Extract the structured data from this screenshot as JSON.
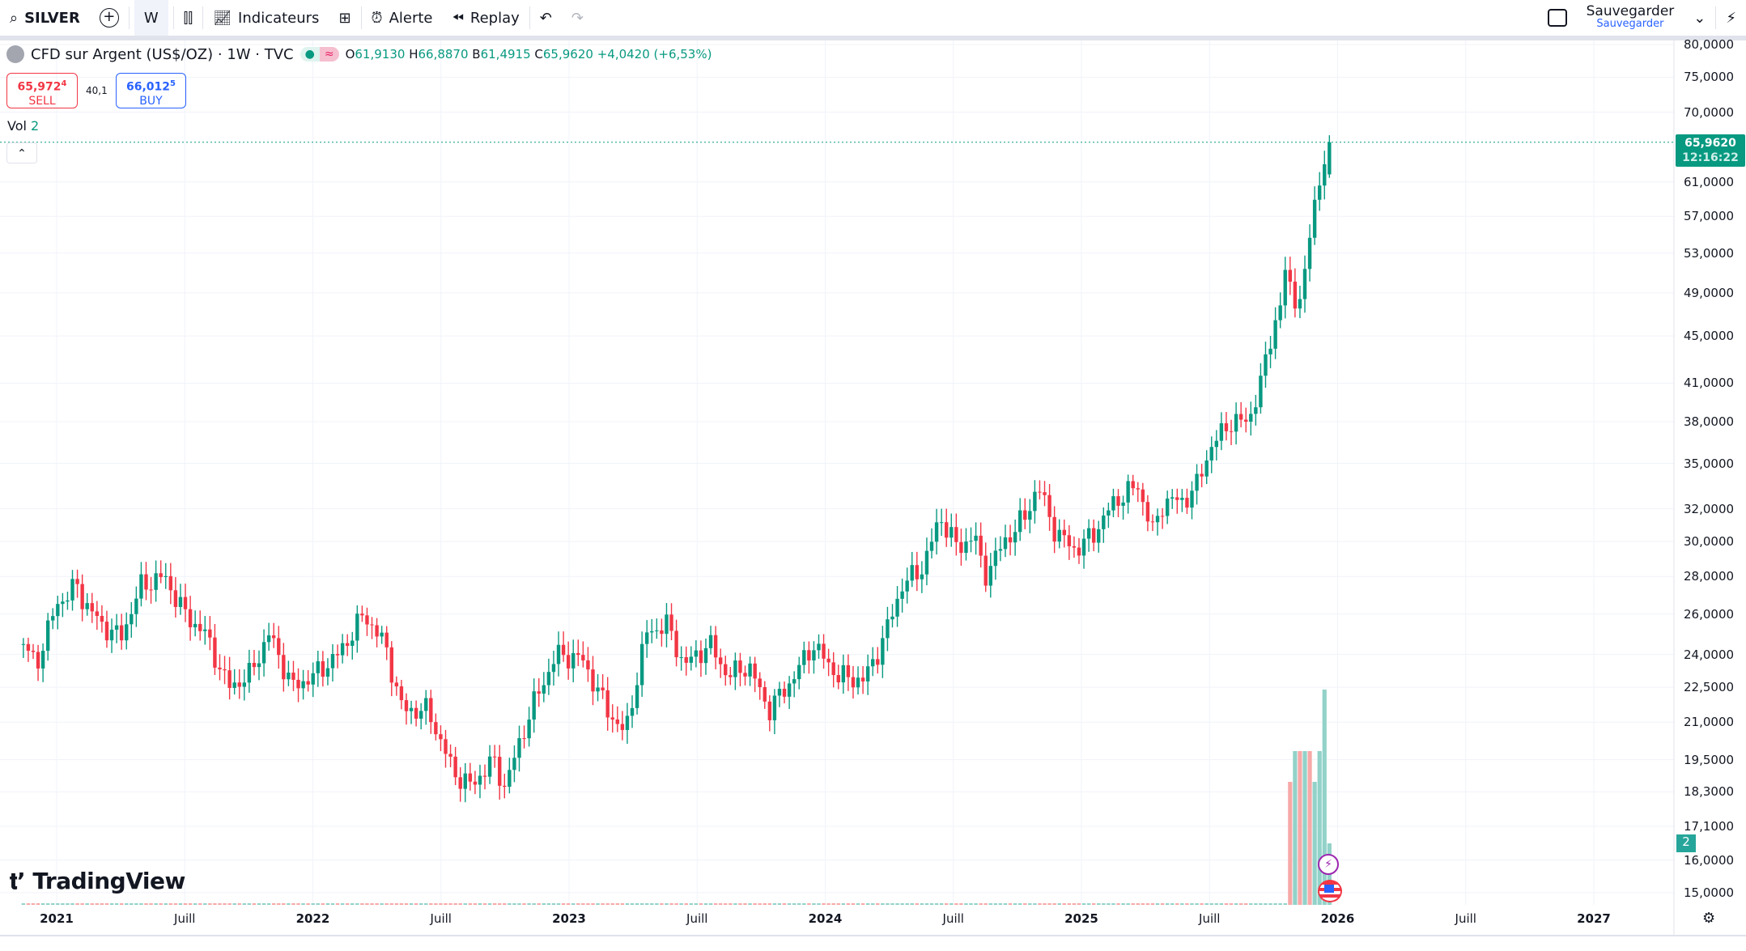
{
  "toolbar": {
    "symbol": "SILVER",
    "interval": "W",
    "indicators": "Indicateurs",
    "alert": "Alerte",
    "replay": "Replay",
    "save": "Sauvegarder",
    "save_sub": "Sauvegarder"
  },
  "legend": {
    "title": "CFD sur Argent (US$/OZ) · 1W · TVC",
    "o_label": "O",
    "o": "61,9130",
    "h_label": "H",
    "h": "66,8870",
    "l_label": "B",
    "l": "61,4915",
    "c_label": "C",
    "c": "65,9620",
    "change": "+4,0420 (+6,53%)"
  },
  "trade": {
    "sell_price": "65,972",
    "sell_sup": "4",
    "sell_label": "SELL",
    "spread": "40,1",
    "buy_price": "66,012",
    "buy_sup": "5",
    "buy_label": "BUY"
  },
  "volume": {
    "label": "Vol",
    "value": "2"
  },
  "price_tag": {
    "price": "65,9620",
    "countdown": "12:16:22"
  },
  "price_axis": [
    "80,0000",
    "75,0000",
    "70,0000",
    "61,0000",
    "57,0000",
    "53,0000",
    "49,0000",
    "45,0000",
    "41,0000",
    "38,0000",
    "35,0000",
    "32,0000",
    "30,0000",
    "28,0000",
    "26,0000",
    "24,0000",
    "22,5000",
    "21,0000",
    "19,5000",
    "18,3000",
    "17,1000",
    "16,0000",
    "15,0000"
  ],
  "time_axis": [
    {
      "label": "2021",
      "y": 2021,
      "bold": true
    },
    {
      "label": "Juill",
      "y": 2021.5
    },
    {
      "label": "2022",
      "y": 2022,
      "bold": true
    },
    {
      "label": "Juill",
      "y": 2022.5
    },
    {
      "label": "2023",
      "y": 2023,
      "bold": true
    },
    {
      "label": "Juill",
      "y": 2023.5
    },
    {
      "label": "2024",
      "y": 2024,
      "bold": true
    },
    {
      "label": "Juill",
      "y": 2024.5
    },
    {
      "label": "2025",
      "y": 2025,
      "bold": true
    },
    {
      "label": "Juill",
      "y": 2025.5
    },
    {
      "label": "2026",
      "y": 2026,
      "bold": true
    },
    {
      "label": "Juill",
      "y": 2026.5
    },
    {
      "label": "2027",
      "y": 2027,
      "bold": true
    }
  ],
  "logo": "TradingView",
  "colors": {
    "up": "#089981",
    "down": "#F23645",
    "up_vol": "#92d2c9",
    "down_vol": "#f7a9a7"
  },
  "chart_data": {
    "type": "candlestick",
    "scale": "log",
    "last": {
      "open": 61.913,
      "high": 66.887,
      "low": 61.4915,
      "close": 65.962
    },
    "anchors": [
      [
        2020.87,
        24.5
      ],
      [
        2020.92,
        23.5
      ],
      [
        2021.0,
        26.5
      ],
      [
        2021.08,
        27.5
      ],
      [
        2021.1,
        26.8
      ],
      [
        2021.17,
        25.5
      ],
      [
        2021.25,
        24.8
      ],
      [
        2021.33,
        27.5
      ],
      [
        2021.42,
        28
      ],
      [
        2021.5,
        26
      ],
      [
        2021.58,
        25
      ],
      [
        2021.67,
        22.5
      ],
      [
        2021.75,
        23
      ],
      [
        2021.83,
        25
      ],
      [
        2021.92,
        22.5
      ],
      [
        2022.0,
        23
      ],
      [
        2022.1,
        24
      ],
      [
        2022.2,
        26
      ],
      [
        2022.28,
        24.5
      ],
      [
        2022.35,
        21.5
      ],
      [
        2022.45,
        21.5
      ],
      [
        2022.55,
        19
      ],
      [
        2022.62,
        18.5
      ],
      [
        2022.7,
        19.5
      ],
      [
        2022.75,
        18.5
      ],
      [
        2022.85,
        21.5
      ],
      [
        2022.95,
        24
      ],
      [
        2023.05,
        23.8
      ],
      [
        2023.15,
        21.5
      ],
      [
        2023.22,
        20.5
      ],
      [
        2023.3,
        25
      ],
      [
        2023.38,
        25.5
      ],
      [
        2023.45,
        23.5
      ],
      [
        2023.55,
        24.5
      ],
      [
        2023.62,
        23
      ],
      [
        2023.7,
        23.5
      ],
      [
        2023.78,
        21.5
      ],
      [
        2023.88,
        23
      ],
      [
        2023.95,
        24.5
      ],
      [
        2024.05,
        23
      ],
      [
        2024.15,
        22.8
      ],
      [
        2024.22,
        24.5
      ],
      [
        2024.3,
        27.5
      ],
      [
        2024.38,
        28.5
      ],
      [
        2024.45,
        31.5
      ],
      [
        2024.52,
        29.5
      ],
      [
        2024.58,
        30.5
      ],
      [
        2024.62,
        28
      ],
      [
        2024.7,
        30
      ],
      [
        2024.78,
        31.5
      ],
      [
        2024.83,
        33.5
      ],
      [
        2024.9,
        30.5
      ],
      [
        2024.98,
        29.5
      ],
      [
        2025.05,
        30.5
      ],
      [
        2025.13,
        32.5
      ],
      [
        2025.22,
        33.5
      ],
      [
        2025.28,
        30.5
      ],
      [
        2025.32,
        32.5
      ],
      [
        2025.4,
        32.5
      ],
      [
        2025.45,
        33.5
      ],
      [
        2025.5,
        36
      ],
      [
        2025.58,
        38
      ],
      [
        2025.65,
        38
      ],
      [
        2025.7,
        41
      ],
      [
        2025.75,
        46
      ],
      [
        2025.78,
        48
      ],
      [
        2025.8,
        52
      ],
      [
        2025.82,
        48.5
      ],
      [
        2025.85,
        48.5
      ],
      [
        2025.88,
        51
      ],
      [
        2025.9,
        58
      ],
      [
        2025.94,
        62
      ],
      [
        2025.96,
        65.962
      ]
    ],
    "recent_volume": [
      4,
      5,
      5,
      5,
      5,
      4,
      5,
      7,
      2
    ],
    "recent_volume_dir": [
      "down",
      "up",
      "down",
      "up",
      "down",
      "up",
      "up",
      "up",
      "up"
    ]
  }
}
